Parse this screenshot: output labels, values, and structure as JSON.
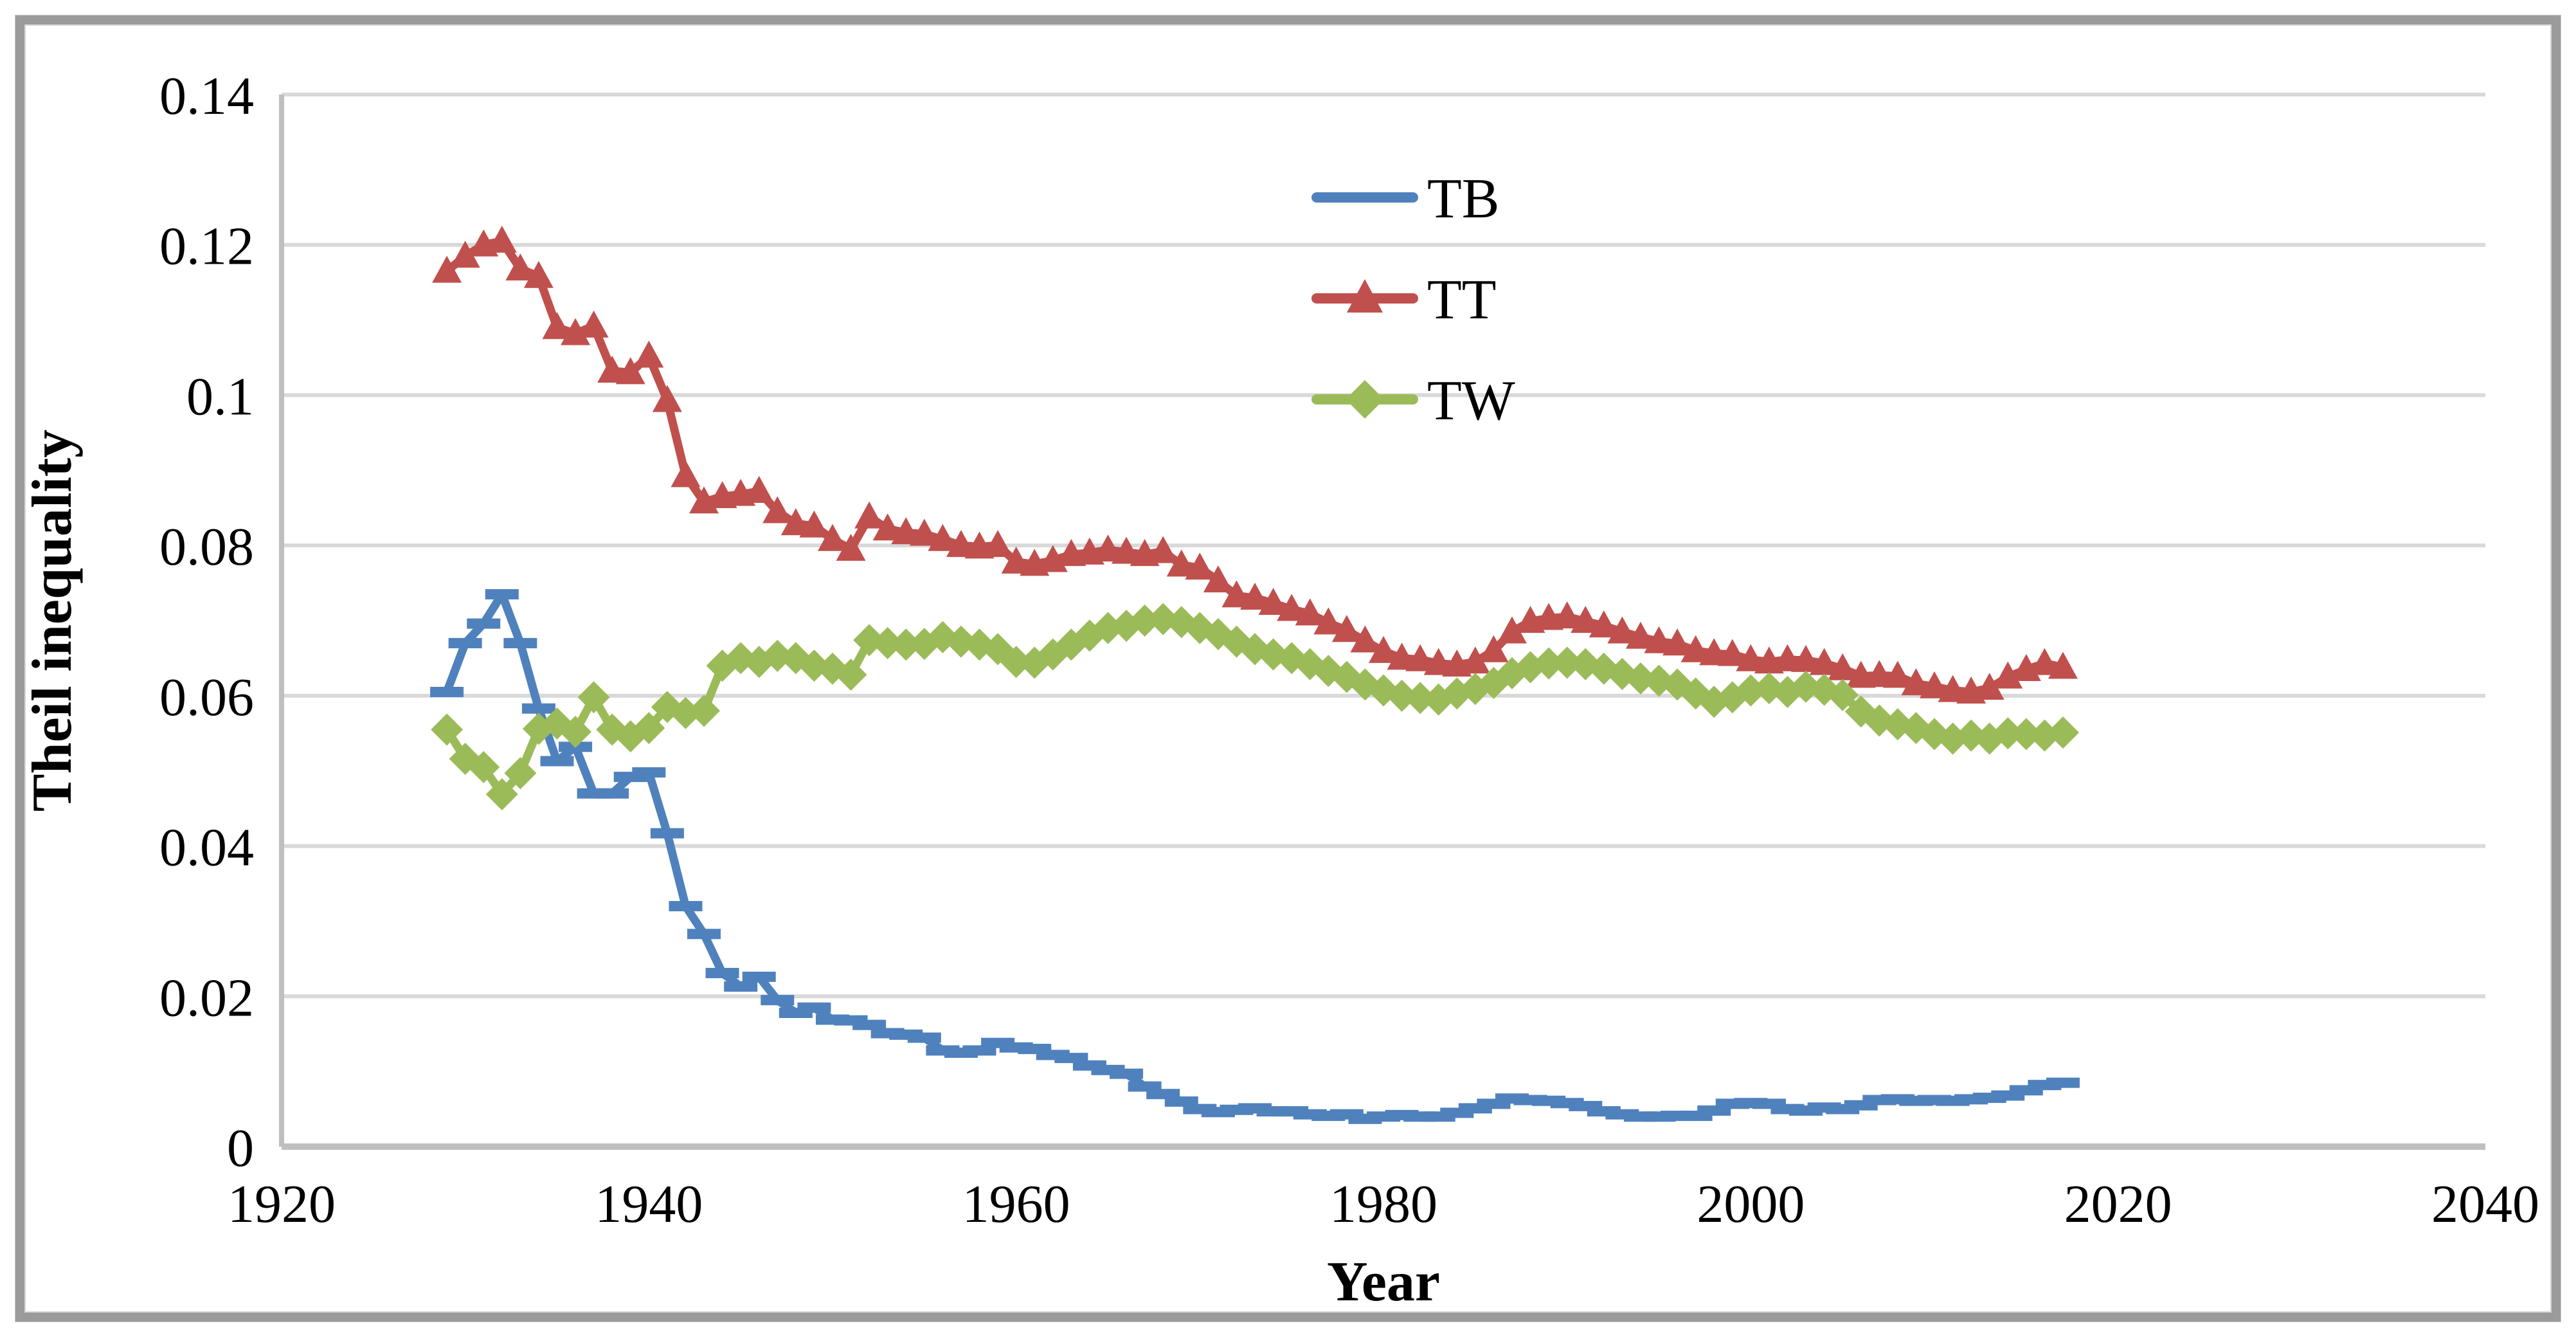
{
  "chart_data": {
    "type": "line",
    "title": "",
    "xlabel": "Year",
    "ylabel": "Theil inequality",
    "xlim": [
      1920,
      2040
    ],
    "ylim": [
      0,
      0.14
    ],
    "grid": "horizontal",
    "gridline_color": "#d9d9d9",
    "axis_line_color": "#bfbfbf",
    "x_ticks": [
      1920,
      1940,
      1960,
      1980,
      2000,
      2020,
      2040
    ],
    "y_ticks": [
      0,
      0.02,
      0.04,
      0.06,
      0.08,
      0.1,
      0.12,
      0.14
    ],
    "y_tick_labels": [
      "0",
      "0.02",
      "0.04",
      "0.06",
      "0.08",
      "0.1",
      "0.12",
      "0.14"
    ],
    "legend_position": "top-center-inside",
    "x": [
      1929,
      1930,
      1931,
      1932,
      1933,
      1934,
      1935,
      1936,
      1937,
      1938,
      1939,
      1940,
      1941,
      1942,
      1943,
      1944,
      1945,
      1946,
      1947,
      1948,
      1949,
      1950,
      1951,
      1952,
      1953,
      1954,
      1955,
      1956,
      1957,
      1958,
      1959,
      1960,
      1961,
      1962,
      1963,
      1964,
      1965,
      1966,
      1967,
      1968,
      1969,
      1970,
      1971,
      1972,
      1973,
      1974,
      1975,
      1976,
      1977,
      1978,
      1979,
      1980,
      1981,
      1982,
      1983,
      1984,
      1985,
      1986,
      1987,
      1988,
      1989,
      1990,
      1991,
      1992,
      1993,
      1994,
      1995,
      1996,
      1997,
      1998,
      1999,
      2000,
      2001,
      2002,
      2003,
      2004,
      2005,
      2006,
      2007,
      2008,
      2009,
      2010,
      2011,
      2012,
      2013,
      2014,
      2015,
      2016,
      2017
    ],
    "series": [
      {
        "name": "TB",
        "color": "#4f81bd",
        "marker": "dash",
        "values": [
          0.0605,
          0.067,
          0.0696,
          0.0735,
          0.067,
          0.0583,
          0.0513,
          0.0532,
          0.047,
          0.047,
          0.0492,
          0.0498,
          0.0417,
          0.032,
          0.0283,
          0.0231,
          0.0213,
          0.0226,
          0.0195,
          0.0178,
          0.0185,
          0.0169,
          0.0168,
          0.0162,
          0.0151,
          0.0149,
          0.0145,
          0.0128,
          0.0125,
          0.0128,
          0.0138,
          0.0132,
          0.013,
          0.0122,
          0.0118,
          0.0108,
          0.0102,
          0.0097,
          0.008,
          0.007,
          0.006,
          0.005,
          0.0046,
          0.0049,
          0.0051,
          0.0047,
          0.0047,
          0.0043,
          0.0041,
          0.0043,
          0.0037,
          0.004,
          0.0042,
          0.004,
          0.004,
          0.0045,
          0.0051,
          0.0057,
          0.0064,
          0.0062,
          0.0061,
          0.0058,
          0.0054,
          0.0047,
          0.0043,
          0.004,
          0.004,
          0.0041,
          0.0041,
          0.0048,
          0.0057,
          0.0058,
          0.0057,
          0.005,
          0.0048,
          0.0052,
          0.005,
          0.0055,
          0.0062,
          0.0063,
          0.0061,
          0.0062,
          0.0061,
          0.0063,
          0.0065,
          0.0068,
          0.0075,
          0.0082,
          0.0085
        ]
      },
      {
        "name": "TT",
        "color": "#c0504d",
        "marker": "triangle",
        "values": [
          0.1165,
          0.1185,
          0.12,
          0.1205,
          0.1168,
          0.1158,
          0.109,
          0.1082,
          0.1092,
          0.1032,
          0.103,
          0.1052,
          0.0993,
          0.0893,
          0.0858,
          0.0865,
          0.0868,
          0.0872,
          0.0845,
          0.0829,
          0.0826,
          0.0808,
          0.0795,
          0.0838,
          0.0822,
          0.0817,
          0.0815,
          0.0808,
          0.08,
          0.0798,
          0.08,
          0.0778,
          0.0775,
          0.078,
          0.0788,
          0.079,
          0.0794,
          0.0791,
          0.0788,
          0.0792,
          0.0774,
          0.077,
          0.0753,
          0.0733,
          0.073,
          0.0723,
          0.0715,
          0.0709,
          0.0697,
          0.0687,
          0.0673,
          0.0659,
          0.065,
          0.0648,
          0.0643,
          0.0641,
          0.0645,
          0.066,
          0.0685,
          0.0699,
          0.0703,
          0.0705,
          0.0699,
          0.0693,
          0.0685,
          0.0678,
          0.0672,
          0.0669,
          0.066,
          0.0656,
          0.0655,
          0.0648,
          0.0645,
          0.0648,
          0.0647,
          0.0643,
          0.0636,
          0.0626,
          0.0627,
          0.0626,
          0.0616,
          0.0612,
          0.0607,
          0.0605,
          0.061,
          0.0625,
          0.0635,
          0.0643,
          0.0638
        ]
      },
      {
        "name": "TW",
        "color": "#9bbb59",
        "marker": "diamond",
        "values": [
          0.0555,
          0.0516,
          0.0505,
          0.0469,
          0.0497,
          0.0556,
          0.0563,
          0.0552,
          0.0598,
          0.0555,
          0.0546,
          0.0557,
          0.0585,
          0.0577,
          0.058,
          0.064,
          0.065,
          0.0645,
          0.0653,
          0.065,
          0.064,
          0.0636,
          0.0628,
          0.0674,
          0.067,
          0.0668,
          0.0669,
          0.0678,
          0.0672,
          0.0668,
          0.0662,
          0.0645,
          0.0644,
          0.0655,
          0.0668,
          0.068,
          0.069,
          0.0693,
          0.07,
          0.0702,
          0.0698,
          0.069,
          0.0682,
          0.0672,
          0.0662,
          0.0655,
          0.065,
          0.0642,
          0.0633,
          0.0625,
          0.0615,
          0.0607,
          0.06,
          0.0597,
          0.0595,
          0.0603,
          0.0609,
          0.0617,
          0.063,
          0.0638,
          0.0643,
          0.0644,
          0.0642,
          0.0636,
          0.0629,
          0.0623,
          0.062,
          0.0615,
          0.0603,
          0.0592,
          0.0598,
          0.0607,
          0.061,
          0.0605,
          0.0612,
          0.0608,
          0.0601,
          0.0579,
          0.0567,
          0.0562,
          0.0557,
          0.0549,
          0.0543,
          0.0547,
          0.0543,
          0.055,
          0.0549,
          0.0547,
          0.0551
        ]
      }
    ]
  }
}
